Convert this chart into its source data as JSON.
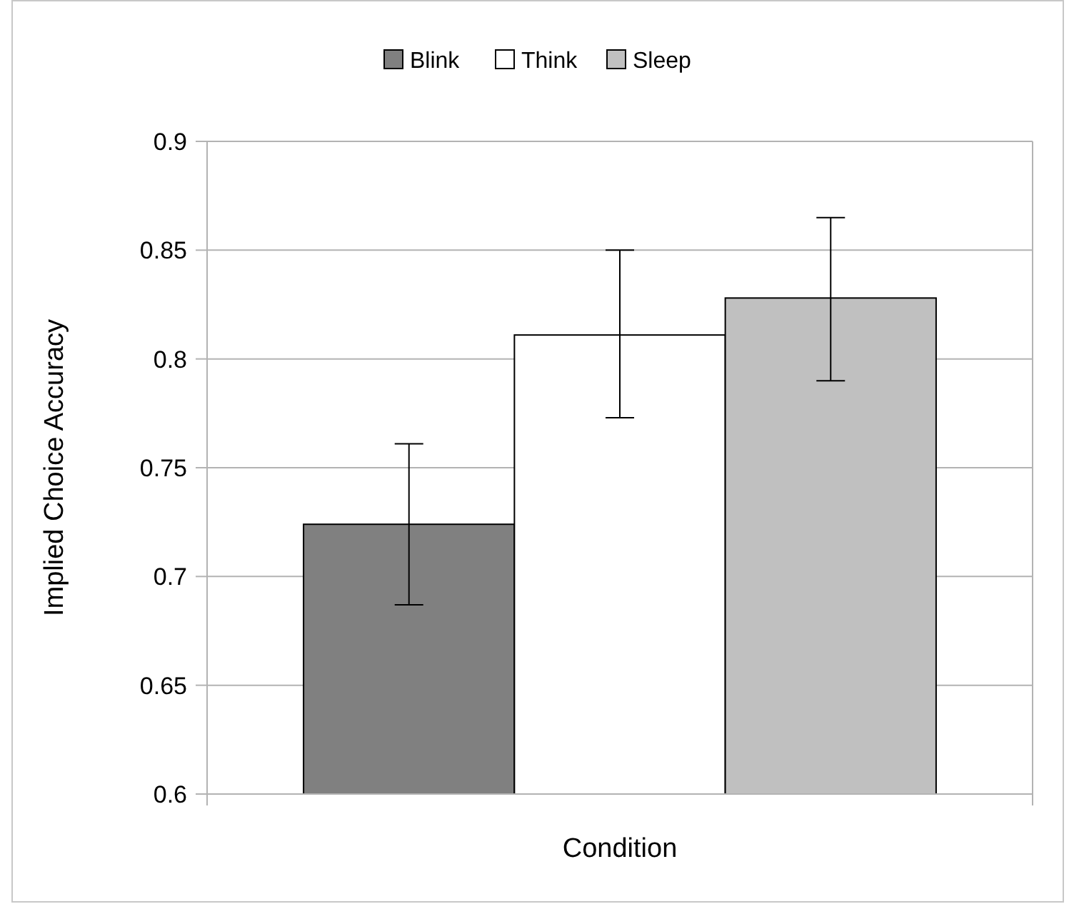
{
  "chart_data": {
    "type": "bar",
    "xlabel": "Condition",
    "ylabel": "Implied Choice Accuracy",
    "categories": [
      null
    ],
    "series": [
      {
        "name": "Blink",
        "color": "#808080",
        "values": [
          0.724
        ],
        "errors": [
          [
            0.687,
            0.761
          ]
        ]
      },
      {
        "name": "Think",
        "color": "#ffffff",
        "values": [
          0.811
        ],
        "errors": [
          [
            0.773,
            0.85
          ]
        ]
      },
      {
        "name": "Sleep",
        "color": "#c0c0c0",
        "values": [
          0.828
        ],
        "errors": [
          [
            0.79,
            0.865
          ]
        ]
      }
    ],
    "ylim": [
      0.6,
      0.9
    ],
    "yticks": [
      0.6,
      0.65,
      0.7,
      0.75,
      0.8,
      0.85,
      0.9
    ],
    "grid": "y",
    "legend": "top"
  }
}
